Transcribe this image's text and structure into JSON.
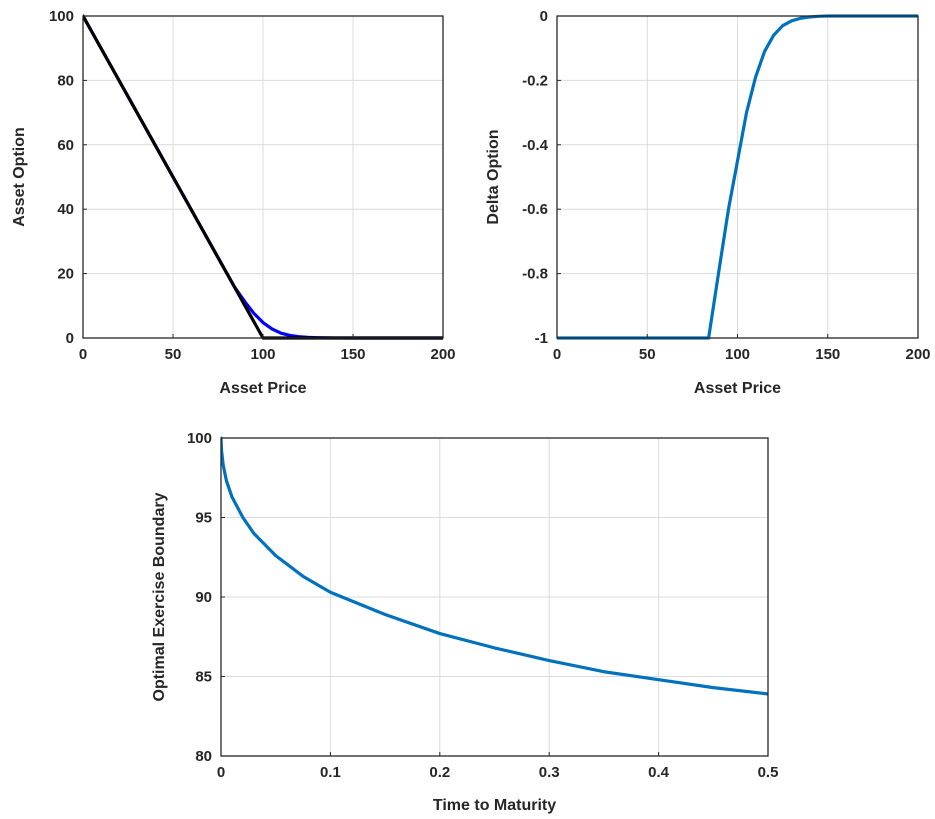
{
  "chart_data": [
    {
      "type": "line",
      "xlabel": "Asset Price",
      "ylabel": "Asset Option",
      "xlim": [
        0,
        200
      ],
      "ylim": [
        0,
        100
      ],
      "xticks": [
        "0",
        "50",
        "100",
        "150",
        "200"
      ],
      "yticks": [
        "0",
        "20",
        "40",
        "60",
        "80",
        "100"
      ],
      "xtick_values": [
        0,
        50,
        100,
        150,
        200
      ],
      "ytick_values": [
        0,
        20,
        40,
        60,
        80,
        100
      ],
      "grid": true,
      "series": [
        {
          "color": "#0000ff",
          "x": [
            0,
            50,
            84,
            90,
            95,
            100,
            105,
            110,
            115,
            120,
            125,
            130,
            135,
            140,
            150,
            200
          ],
          "y": [
            100,
            50,
            16,
            11.2,
            7.6,
            4.8,
            2.8,
            1.5,
            0.8,
            0.4,
            0.2,
            0.1,
            0.05,
            0.02,
            0,
            0
          ]
        },
        {
          "color": "#000000",
          "x": [
            0,
            100,
            200
          ],
          "y": [
            100,
            0,
            0
          ]
        }
      ]
    },
    {
      "type": "line",
      "xlabel": "Asset Price",
      "ylabel": "Delta Option",
      "xlim": [
        0,
        200
      ],
      "ylim": [
        -1,
        0
      ],
      "xticks": [
        "0",
        "50",
        "100",
        "150",
        "200"
      ],
      "yticks": [
        "-1",
        "-0.8",
        "-0.6",
        "-0.4",
        "-0.2",
        "0"
      ],
      "xtick_values": [
        0,
        50,
        100,
        150,
        200
      ],
      "ytick_values": [
        -1,
        -0.8,
        -0.6,
        -0.4,
        -0.2,
        0
      ],
      "grid": true,
      "series": [
        {
          "color": "#0072bd",
          "x": [
            0,
            84,
            90,
            95,
            100,
            105,
            110,
            115,
            120,
            125,
            130,
            135,
            140,
            145,
            150,
            160,
            200
          ],
          "y": [
            -1,
            -1,
            -0.78,
            -0.6,
            -0.45,
            -0.3,
            -0.19,
            -0.11,
            -0.06,
            -0.03,
            -0.015,
            -0.007,
            -0.003,
            -0.001,
            0,
            0,
            0
          ]
        }
      ]
    },
    {
      "type": "line",
      "xlabel": "Time to Maturity",
      "ylabel": "Optimal Exercise Boundary",
      "xlim": [
        0,
        0.5
      ],
      "ylim": [
        80,
        100
      ],
      "xticks": [
        "0",
        "0.1",
        "0.2",
        "0.3",
        "0.4",
        "0.5"
      ],
      "yticks": [
        "80",
        "85",
        "90",
        "95",
        "100"
      ],
      "xtick_values": [
        0,
        0.1,
        0.2,
        0.3,
        0.4,
        0.5
      ],
      "ytick_values": [
        80,
        85,
        90,
        95,
        100
      ],
      "grid": true,
      "series": [
        {
          "color": "#0072bd",
          "x": [
            0,
            0.0005,
            0.002,
            0.005,
            0.01,
            0.02,
            0.03,
            0.05,
            0.075,
            0.1,
            0.15,
            0.2,
            0.25,
            0.3,
            0.35,
            0.4,
            0.45,
            0.5
          ],
          "y": [
            100,
            99.2,
            98.3,
            97.3,
            96.3,
            95.0,
            94.0,
            92.6,
            91.3,
            90.3,
            88.9,
            87.7,
            86.8,
            86.0,
            85.3,
            84.8,
            84.3,
            83.9
          ]
        }
      ]
    }
  ]
}
